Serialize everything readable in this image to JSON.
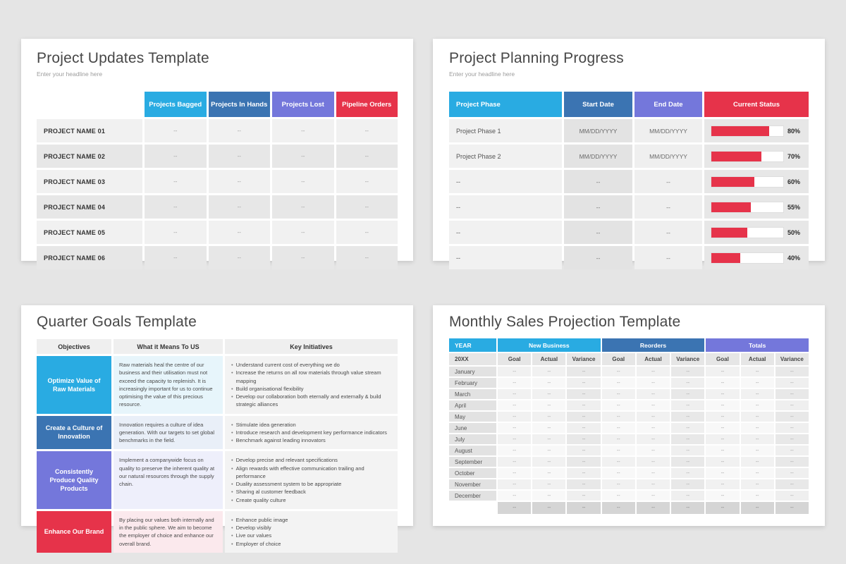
{
  "page": {
    "background": "#e5e5e5"
  },
  "palette": {
    "cyan": "#29abe2",
    "steel_blue": "#3b74b2",
    "purple": "#7477db",
    "red": "#e6334a"
  },
  "cards": {
    "project_updates": {
      "title": "Project Updates Template",
      "subtitle": "Enter your headline here",
      "columns": [
        {
          "label": "Projects Bagged",
          "color": "#29abe2"
        },
        {
          "label": "Projects In Hands",
          "color": "#3b74b2"
        },
        {
          "label": "Projects Lost",
          "color": "#7477db"
        },
        {
          "label": "Pipeline Orders",
          "color": "#e6334a"
        }
      ],
      "rows": [
        {
          "name": "PROJECT NAME 01",
          "values": [
            "--",
            "--",
            "--",
            "--"
          ]
        },
        {
          "name": "PROJECT NAME 02",
          "values": [
            "--",
            "--",
            "--",
            "--"
          ]
        },
        {
          "name": "PROJECT NAME 03",
          "values": [
            "--",
            "--",
            "--",
            "--"
          ]
        },
        {
          "name": "PROJECT NAME 04",
          "values": [
            "--",
            "--",
            "--",
            "--"
          ]
        },
        {
          "name": "PROJECT NAME 05",
          "values": [
            "--",
            "--",
            "--",
            "--"
          ]
        },
        {
          "name": "PROJECT NAME 06",
          "values": [
            "--",
            "--",
            "--",
            "--"
          ]
        }
      ]
    },
    "project_planning": {
      "title": "Project Planning Progress",
      "subtitle": "Enter your headline here",
      "columns": [
        {
          "label": "Project Phase",
          "color": "#29abe2"
        },
        {
          "label": "Start Date",
          "color": "#3b74b2"
        },
        {
          "label": "End Date",
          "color": "#7477db"
        },
        {
          "label": "Current Status",
          "color": "#e6334a"
        }
      ],
      "rows": [
        {
          "phase": "Project Phase 1",
          "start": "MM/DD/YYYY",
          "end": "MM/DD/YYYY",
          "progress": 80,
          "progress_label": "80%"
        },
        {
          "phase": "Project Phase 2",
          "start": "MM/DD/YYYY",
          "end": "MM/DD/YYYY",
          "progress": 70,
          "progress_label": "70%"
        },
        {
          "phase": "--",
          "start": "--",
          "end": "--",
          "progress": 60,
          "progress_label": "60%"
        },
        {
          "phase": "--",
          "start": "--",
          "end": "--",
          "progress": 55,
          "progress_label": "55%"
        },
        {
          "phase": "--",
          "start": "--",
          "end": "--",
          "progress": 50,
          "progress_label": "50%"
        },
        {
          "phase": "--",
          "start": "--",
          "end": "--",
          "progress": 40,
          "progress_label": "40%"
        }
      ],
      "bar_color": "#e6334a"
    },
    "quarter_goals": {
      "title": "Quarter Goals Template",
      "columns": [
        "Objectives",
        "What it Means To US",
        "Key Initiatives"
      ],
      "rows": [
        {
          "objective": "Optimize Value of Raw Materials",
          "color": "#29abe2",
          "tint": "#e7f5fb",
          "means": "Raw materials heal the centre of our business and their utilisation must not exceed the capacity to replenish. It is increasingly important for us to continue optimising the value of this precious resource.",
          "initiatives": [
            "Understand current cost of everything we do",
            "Increase the returns on all row materials through value stream mapping",
            "Build organisational flexibility",
            "Develop our collaboration both eternally and externally & build strategic alliances"
          ]
        },
        {
          "objective": "Create a Culture of Innovation",
          "color": "#3b74b2",
          "tint": "#e9eff8",
          "means": "Innovation requires a culture of idea generation. With our targets to set global benchmarks in the field.",
          "initiatives": [
            "Stimulate idea generation",
            "Introduce research and development key performance indicators",
            "Benchmark against leading innovators"
          ]
        },
        {
          "objective": "Consistently Produce Quality Products",
          "color": "#7477db",
          "tint": "#eeeffb",
          "means": "Implement a companywide focus on quality to preserve the inherent quality at our natural resources through the supply chain.",
          "initiatives": [
            "Develop precise and relevant specifications",
            "Align rewards with effective communication trailing and performance",
            "Duality assessment system to be appropriate",
            "Sharing al customer feedback",
            "Create quality culture"
          ]
        },
        {
          "objective": "Enhance Our Brand",
          "color": "#e6334a",
          "tint": "#fbe9ed",
          "means": "By placing our values both internally and in the public sphere. We aim to become the employer of choice and enhance our overall brand.",
          "initiatives": [
            "Enhance public image",
            "Develop visibly",
            "Live our values",
            "Employer of choice"
          ]
        }
      ]
    },
    "monthly_sales": {
      "title": "Monthly Sales Projection Template",
      "year_header": "YEAR",
      "year_value": "20XX",
      "groups": [
        {
          "label": "New Business",
          "color": "#29abe2"
        },
        {
          "label": "Reorders",
          "color": "#3b74b2"
        },
        {
          "label": "Totals",
          "color": "#7477db"
        }
      ],
      "subcolumns": [
        "Goal",
        "Actual",
        "Variance"
      ],
      "months": [
        "January",
        "February",
        "March",
        "April",
        "May",
        "June",
        "July",
        "August",
        "September",
        "October",
        "November",
        "December"
      ],
      "placeholder": "--",
      "totals_row": [
        "--",
        "--",
        "--",
        "--",
        "--",
        "--",
        "--",
        "--",
        "--"
      ]
    }
  }
}
